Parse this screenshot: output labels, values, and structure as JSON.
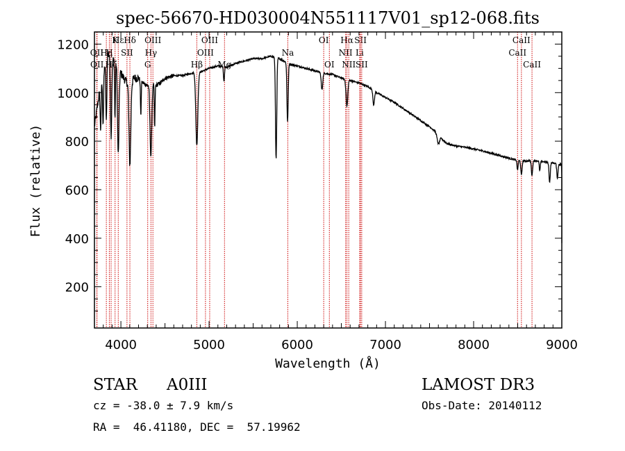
{
  "chart_data": {
    "type": "line",
    "title": "spec-56670-HD030004N551117V01_sp12-068.fits",
    "xlabel": "Wavelength (Å)",
    "ylabel": "Flux (relative)",
    "xlim": [
      3700,
      9000
    ],
    "ylim": [
      30,
      1250
    ],
    "x_ticks": [
      4000,
      5000,
      6000,
      7000,
      8000,
      9000
    ],
    "y_ticks": [
      200,
      400,
      600,
      800,
      1000,
      1200
    ],
    "line_color": "#000000",
    "marker_color": "#cc0000",
    "continuum": [
      [
        3700,
        860
      ],
      [
        3760,
        1010
      ],
      [
        3800,
        1080
      ],
      [
        3850,
        1160
      ],
      [
        3900,
        1140
      ],
      [
        3950,
        1120
      ],
      [
        4000,
        1080
      ],
      [
        4050,
        1050
      ],
      [
        4100,
        1030
      ],
      [
        4150,
        1060
      ],
      [
        4200,
        1060
      ],
      [
        4250,
        1040
      ],
      [
        4300,
        1030
      ],
      [
        4350,
        1040
      ],
      [
        4400,
        1030
      ],
      [
        4450,
        1040
      ],
      [
        4500,
        1060
      ],
      [
        4600,
        1070
      ],
      [
        4700,
        1070
      ],
      [
        4800,
        1080
      ],
      [
        4900,
        1085
      ],
      [
        5000,
        1100
      ],
      [
        5100,
        1110
      ],
      [
        5200,
        1105
      ],
      [
        5300,
        1120
      ],
      [
        5400,
        1130
      ],
      [
        5500,
        1140
      ],
      [
        5600,
        1140
      ],
      [
        5700,
        1150
      ],
      [
        5800,
        1140
      ],
      [
        5900,
        1120
      ],
      [
        6000,
        1110
      ],
      [
        6100,
        1100
      ],
      [
        6200,
        1090
      ],
      [
        6300,
        1080
      ],
      [
        6400,
        1075
      ],
      [
        6500,
        1060
      ],
      [
        6600,
        1050
      ],
      [
        6700,
        1040
      ],
      [
        6800,
        1025
      ],
      [
        6900,
        1000
      ],
      [
        7000,
        980
      ],
      [
        7100,
        960
      ],
      [
        7200,
        935
      ],
      [
        7300,
        910
      ],
      [
        7400,
        885
      ],
      [
        7500,
        860
      ],
      [
        7600,
        830
      ],
      [
        7650,
        805
      ],
      [
        7700,
        790
      ],
      [
        7800,
        780
      ],
      [
        7900,
        775
      ],
      [
        8000,
        768
      ],
      [
        8100,
        760
      ],
      [
        8200,
        750
      ],
      [
        8300,
        740
      ],
      [
        8400,
        730
      ],
      [
        8500,
        720
      ],
      [
        8600,
        718
      ],
      [
        8700,
        720
      ],
      [
        8800,
        715
      ],
      [
        8900,
        710
      ],
      [
        8990,
        705
      ]
    ],
    "absorption_lines": [
      {
        "x": 3770,
        "depth": 180,
        "width": 8
      },
      {
        "x": 3798,
        "depth": 200,
        "width": 8
      },
      {
        "x": 3835,
        "depth": 260,
        "width": 8
      },
      {
        "x": 3889,
        "depth": 320,
        "width": 10
      },
      {
        "x": 3933,
        "depth": 240,
        "width": 6
      },
      {
        "x": 3970,
        "depth": 360,
        "width": 12
      },
      {
        "x": 4102,
        "depth": 330,
        "width": 14
      },
      {
        "x": 4226,
        "depth": 150,
        "width": 6
      },
      {
        "x": 4340,
        "depth": 300,
        "width": 14
      },
      {
        "x": 4383,
        "depth": 180,
        "width": 6
      },
      {
        "x": 4861,
        "depth": 300,
        "width": 16
      },
      {
        "x": 5169,
        "depth": 60,
        "width": 8
      },
      {
        "x": 5760,
        "depth": 420,
        "width": 10
      },
      {
        "x": 5890,
        "depth": 240,
        "width": 10
      },
      {
        "x": 6280,
        "depth": 70,
        "width": 12
      },
      {
        "x": 6563,
        "depth": 110,
        "width": 14
      },
      {
        "x": 6867,
        "depth": 60,
        "width": 12
      },
      {
        "x": 7600,
        "depth": 40,
        "width": 20
      },
      {
        "x": 8498,
        "depth": 40,
        "width": 8
      },
      {
        "x": 8542,
        "depth": 60,
        "width": 10
      },
      {
        "x": 8662,
        "depth": 60,
        "width": 10
      },
      {
        "x": 8750,
        "depth": 40,
        "width": 8
      },
      {
        "x": 8862,
        "depth": 80,
        "width": 10
      },
      {
        "x": 8950,
        "depth": 60,
        "width": 10
      }
    ],
    "line_markers": [
      {
        "label": "Hε",
        "x": 3970,
        "row": 0
      },
      {
        "label": "K",
        "x": 3934,
        "row": 0
      },
      {
        "label": "Hδ",
        "x": 4102,
        "row": 0
      },
      {
        "label": "OII",
        "x": 3727,
        "row": 1
      },
      {
        "label": "Hη",
        "x": 3835,
        "row": 1
      },
      {
        "label": "H",
        "x": 3869,
        "row": 1
      },
      {
        "label": "SII",
        "x": 4069,
        "row": 1
      },
      {
        "label": "OII",
        "x": 3729,
        "row": 2
      },
      {
        "label": "Hζ",
        "x": 3889,
        "row": 2
      },
      {
        "label": "G",
        "x": 4304,
        "row": 2
      },
      {
        "label": "OIII",
        "x": 4363,
        "row": 0
      },
      {
        "label": "Hγ",
        "x": 4341,
        "row": 1
      },
      {
        "label": "OIII",
        "x": 5007,
        "row": 0
      },
      {
        "label": "OIII",
        "x": 4959,
        "row": 1
      },
      {
        "label": "Hβ",
        "x": 4861,
        "row": 2
      },
      {
        "label": "Mg",
        "x": 5175,
        "row": 2
      },
      {
        "label": "Na",
        "x": 5893,
        "row": 1
      },
      {
        "label": "OI",
        "x": 6300,
        "row": 0
      },
      {
        "label": "OI",
        "x": 6364,
        "row": 2
      },
      {
        "label": "Hα",
        "x": 6563,
        "row": 0
      },
      {
        "label": "SII",
        "x": 6717,
        "row": 0
      },
      {
        "label": "NII",
        "x": 6548,
        "row": 1
      },
      {
        "label": "Li",
        "x": 6708,
        "row": 1
      },
      {
        "label": "NII",
        "x": 6584,
        "row": 2
      },
      {
        "label": "SII",
        "x": 6731,
        "row": 2
      },
      {
        "label": "CaII",
        "x": 8542,
        "row": 0
      },
      {
        "label": "CaII",
        "x": 8498,
        "row": 1
      },
      {
        "label": "CaII",
        "x": 8662,
        "row": 2
      }
    ]
  },
  "info": {
    "object_type": "STAR",
    "subclass": "A0III",
    "survey": "LAMOST DR3",
    "cz": "cz = -38.0 ± 7.9 km/s",
    "obs_date": "Obs-Date: 20140112",
    "radec": "RA =  46.41180, DEC =  57.19962"
  }
}
